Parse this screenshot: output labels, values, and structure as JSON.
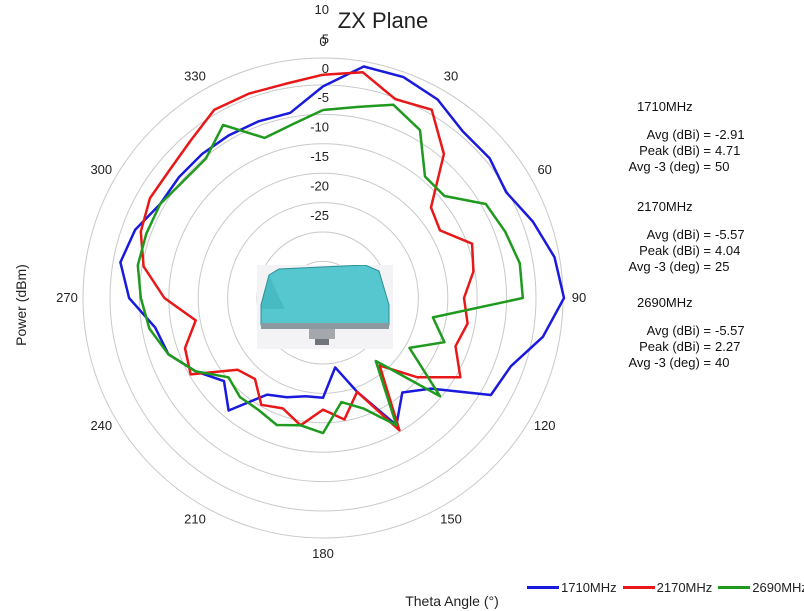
{
  "chart_data": {
    "type": "polar-line",
    "title": "ZX Plane",
    "xlabel": "Theta  Angle (°)",
    "ylabel": "Power (dBm)",
    "angle_ticks": [
      "0",
      "30",
      "60",
      "90",
      "120",
      "150",
      "180",
      "210",
      "240",
      "270",
      "300",
      "330"
    ],
    "radial_ticks": [
      "10",
      "5",
      "0",
      "-5",
      "-10",
      "-15",
      "-20",
      "-25"
    ],
    "rlim": [
      -40,
      10
    ],
    "grid": true,
    "legend_position": "bottom-right",
    "series": [
      {
        "name": "1710MHz",
        "color": "#1a1adc",
        "theta": [
          0,
          10,
          20,
          30,
          40,
          50,
          60,
          70,
          80,
          90,
          100,
          110,
          120,
          130,
          140,
          150,
          160,
          170,
          180,
          190,
          200,
          210,
          220,
          230,
          240,
          250,
          260,
          270,
          280,
          290,
          300,
          310,
          320,
          330,
          340,
          350
        ],
        "r": [
          -3,
          1,
          1,
          0,
          -2,
          -2,
          -3,
          -1,
          1,
          2,
          -1,
          -5,
          -6,
          -15,
          -18,
          -14,
          -22,
          -27,
          -22,
          -22,
          -21,
          -20,
          -14,
          -17,
          -14,
          -11,
          -10,
          -6,
          -4,
          -5,
          -7,
          -7,
          -7,
          -7,
          -7,
          -7
        ]
      },
      {
        "name": "2170MHz",
        "color": "#e81818",
        "theta": [
          0,
          10,
          20,
          30,
          40,
          50,
          60,
          70,
          80,
          90,
          100,
          110,
          120,
          130,
          140,
          150,
          160,
          170,
          180,
          190,
          200,
          210,
          220,
          230,
          240,
          250,
          260,
          270,
          280,
          290,
          300,
          310,
          320,
          330,
          340,
          350
        ],
        "r": [
          -1,
          0,
          -3,
          -2,
          -7,
          -15,
          -16,
          -12,
          -13,
          -15,
          -14,
          -15,
          -12,
          -18,
          -24,
          -13,
          -22,
          -18,
          -20,
          -17,
          -19,
          -18,
          -21,
          -20,
          -13,
          -14,
          -17,
          -12,
          -8,
          -6,
          -5,
          -5,
          -4,
          -2,
          -2,
          -2
        ]
      },
      {
        "name": "2690MHz",
        "color": "#1f9a1f",
        "theta": [
          0,
          10,
          20,
          30,
          40,
          50,
          60,
          70,
          80,
          90,
          100,
          110,
          120,
          130,
          140,
          150,
          160,
          170,
          180,
          190,
          200,
          210,
          220,
          230,
          240,
          250,
          260,
          270,
          280,
          290,
          300,
          310,
          320,
          330,
          340,
          350
        ],
        "r": [
          -7,
          -6,
          -4,
          -6,
          -12,
          -12,
          -7,
          -6,
          -5,
          -5,
          -20,
          -17,
          -22,
          -13,
          -25,
          -14,
          -19,
          -21,
          -16,
          -17,
          -16,
          -17,
          -17,
          -18,
          -14,
          -11,
          -9,
          -8,
          -7,
          -7,
          -7,
          -8,
          -8,
          -5,
          -10,
          -9
        ]
      }
    ],
    "stats": [
      {
        "freq": "1710MHz",
        "avg_label": "Avg (dBi) =",
        "avg": "-2.91",
        "peak_label": "Peak (dBi) =",
        "peak": "4.71",
        "avg3_label": "Avg -3 (deg) =",
        "avg3": "50"
      },
      {
        "freq": "2170MHz",
        "avg_label": "Avg (dBi) =",
        "avg": "-5.57",
        "peak_label": "Peak (dBi) =",
        "peak": "4.04",
        "avg3_label": "Avg -3 (deg) =",
        "avg3": "25"
      },
      {
        "freq": "2690MHz",
        "avg_label": "Avg (dBi) =",
        "avg": "-5.57",
        "peak_label": "Peak (dBi) =",
        "peak": "2.27",
        "avg3_label": "Avg -3 (deg) =",
        "avg3": "40"
      }
    ]
  }
}
